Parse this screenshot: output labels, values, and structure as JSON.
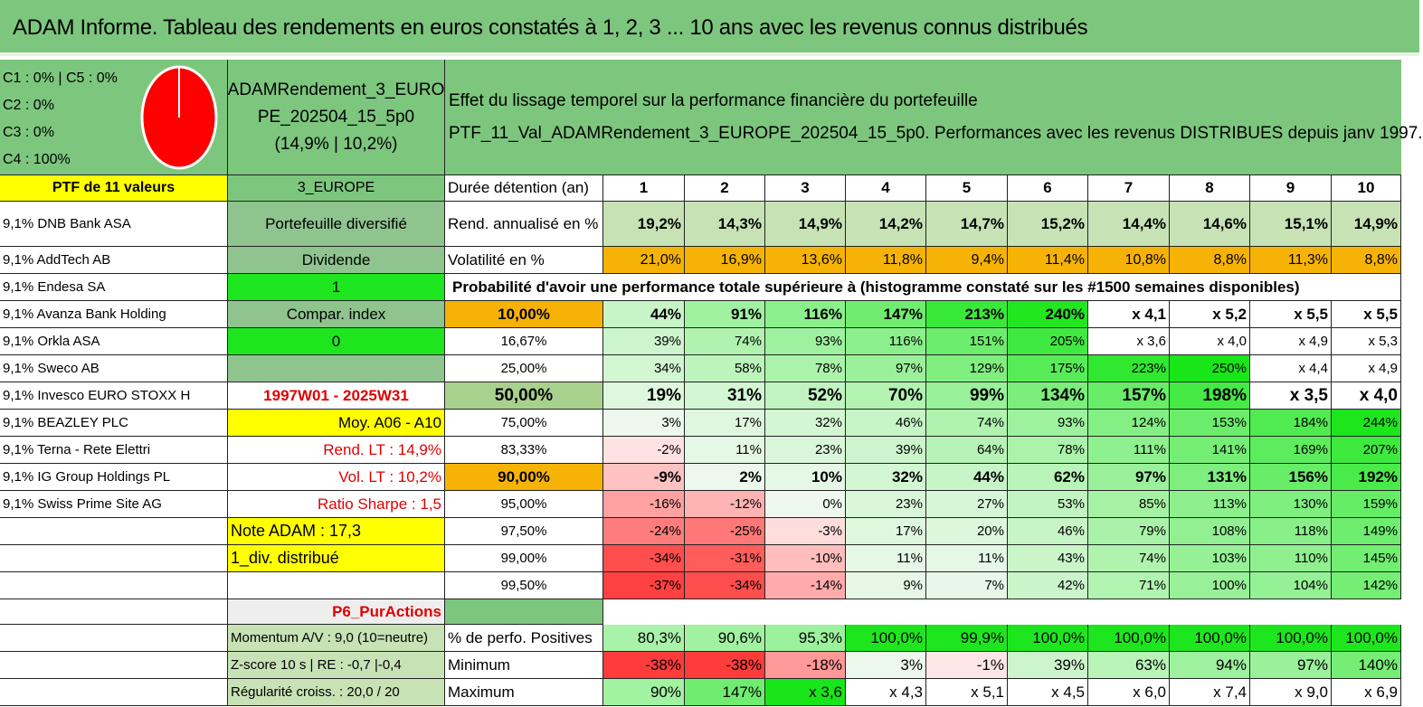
{
  "header": {
    "title": "ADAM Informe. Tableau des rendements en euros constatés à 1, 2, 3 ... 10 ans avec les revenus connus distribués"
  },
  "composition": {
    "lines": [
      "C1 : 0% | C5 : 0%",
      "C2 : 0%",
      "C3 : 0%",
      "C4 : 100%"
    ],
    "pie_color": "#ff0000",
    "pie_share": 1.0
  },
  "fund": {
    "name_line1": "ADAMRendement_3_EURO",
    "name_line2": "PE_202504_15_5p0",
    "perf": "(14,9% | 10,2%)"
  },
  "description": {
    "title": "Effet du lissage temporel sur la performance financière du portefeuille",
    "subtitle": "PTF_11_Val_ADAMRendement_3_EUROPE_202504_15_5p0. Performances avec les revenus DISTRIBUES depuis janv 1997."
  },
  "portfolio": {
    "label": "PTF de 11 valeurs",
    "code": "3_EUROPE"
  },
  "holdings": [
    "9,1% DNB Bank ASA",
    "9,1% AddTech AB",
    "9,1% Endesa SA",
    "9,1% Avanza Bank Holding",
    "9,1% Orkla ASA",
    "9,1% Sweco AB",
    "9,1% Invesco EURO STOXX H",
    "9,1% BEAZLEY PLC",
    "9,1% Terna - Rete Elettri",
    "9,1% IG Group Holdings PL",
    "9,1% Swiss Prime Site AG"
  ],
  "info": {
    "diversified": "Portefeuille diversifié",
    "dividend_label": "Dividende",
    "dividend_value": "1",
    "compar_label": "Compar. index",
    "compar_value": "0",
    "period": "1997W01 - 2025W31",
    "moy": "Moy. A06 - A10",
    "rend_lt": "Rend. LT : 14,9%",
    "vol_lt": "Vol. LT : 10,2%",
    "sharpe": "Ratio Sharpe : 1,5",
    "note": "Note ADAM : 17,3",
    "div_dist": "1_div. distribué",
    "p6": "P6_PurActions",
    "momentum": "Momentum A/V : 9,0 (10=neutre)",
    "zscore": "Z-score 10 s | RE : -0,7 |-0,4",
    "regularite": "Régularité croiss. : 20,0 / 20"
  },
  "table": {
    "duration_label": "Durée détention (an)",
    "durations": [
      "1",
      "2",
      "3",
      "4",
      "5",
      "6",
      "7",
      "8",
      "9",
      "10"
    ],
    "rend_label": "Rend. annualisé en %",
    "rend": [
      "19,2%",
      "14,3%",
      "14,9%",
      "14,2%",
      "14,7%",
      "15,2%",
      "14,4%",
      "14,6%",
      "15,1%",
      "14,9%"
    ],
    "vol_label": "Volatilité en %",
    "vol": [
      "21,0%",
      "16,9%",
      "13,6%",
      "11,8%",
      "9,4%",
      "11,4%",
      "10,8%",
      "8,8%",
      "11,3%",
      "8,8%"
    ],
    "prob_title": "Probabilité d'avoir une performance totale supérieure à (histogramme constaté sur les #1500 semaines disponibles)",
    "prob_rows": [
      {
        "p": "10,00%",
        "v": [
          "44%",
          "91%",
          "116%",
          "147%",
          "213%",
          "240%",
          "x 4,1",
          "x 5,2",
          "x 5,5",
          "x 5,5"
        ]
      },
      {
        "p": "16,67%",
        "v": [
          "39%",
          "74%",
          "93%",
          "116%",
          "151%",
          "205%",
          "x 3,6",
          "x 4,0",
          "x 4,9",
          "x 5,3"
        ]
      },
      {
        "p": "25,00%",
        "v": [
          "34%",
          "58%",
          "78%",
          "97%",
          "129%",
          "175%",
          "223%",
          "250%",
          "x 4,4",
          "x 4,9"
        ]
      },
      {
        "p": "50,00%",
        "v": [
          "19%",
          "31%",
          "52%",
          "70%",
          "99%",
          "134%",
          "157%",
          "198%",
          "x 3,5",
          "x 4,0"
        ]
      },
      {
        "p": "75,00%",
        "v": [
          "3%",
          "17%",
          "32%",
          "46%",
          "74%",
          "93%",
          "124%",
          "153%",
          "184%",
          "244%"
        ]
      },
      {
        "p": "83,33%",
        "v": [
          "-2%",
          "11%",
          "23%",
          "39%",
          "64%",
          "78%",
          "111%",
          "141%",
          "169%",
          "207%"
        ]
      },
      {
        "p": "90,00%",
        "v": [
          "-9%",
          "2%",
          "10%",
          "32%",
          "44%",
          "62%",
          "97%",
          "131%",
          "156%",
          "192%"
        ]
      },
      {
        "p": "95,00%",
        "v": [
          "-16%",
          "-12%",
          "0%",
          "23%",
          "27%",
          "53%",
          "85%",
          "113%",
          "130%",
          "159%"
        ]
      },
      {
        "p": "97,50%",
        "v": [
          "-24%",
          "-25%",
          "-3%",
          "17%",
          "20%",
          "46%",
          "79%",
          "108%",
          "118%",
          "149%"
        ]
      },
      {
        "p": "99,00%",
        "v": [
          "-34%",
          "-31%",
          "-10%",
          "11%",
          "11%",
          "43%",
          "74%",
          "103%",
          "110%",
          "145%"
        ]
      },
      {
        "p": "99,50%",
        "v": [
          "-37%",
          "-34%",
          "-14%",
          "9%",
          "7%",
          "42%",
          "71%",
          "100%",
          "104%",
          "142%"
        ]
      }
    ],
    "pos_label": "% de perfo. Positives",
    "pos": [
      "80,3%",
      "90,6%",
      "95,3%",
      "100,0%",
      "99,9%",
      "100,0%",
      "100,0%",
      "100,0%",
      "100,0%",
      "100,0%"
    ],
    "min_label": "Minimum",
    "min": [
      "-38%",
      "-38%",
      "-18%",
      "3%",
      "-1%",
      "39%",
      "63%",
      "94%",
      "97%",
      "140%"
    ],
    "max_label": "Maximum",
    "max": [
      "90%",
      "147%",
      "x 3,6",
      "x 4,3",
      "x 5,1",
      "x 4,5",
      "x 6,0",
      "x 7,4",
      "x 9,0",
      "x 6,9"
    ]
  },
  "colors": {
    "header_green": "#7dc67e",
    "orange": "#f6b305",
    "yellow": "#ffff00",
    "bright_green": "#1ee61e",
    "red": "#e00000"
  }
}
